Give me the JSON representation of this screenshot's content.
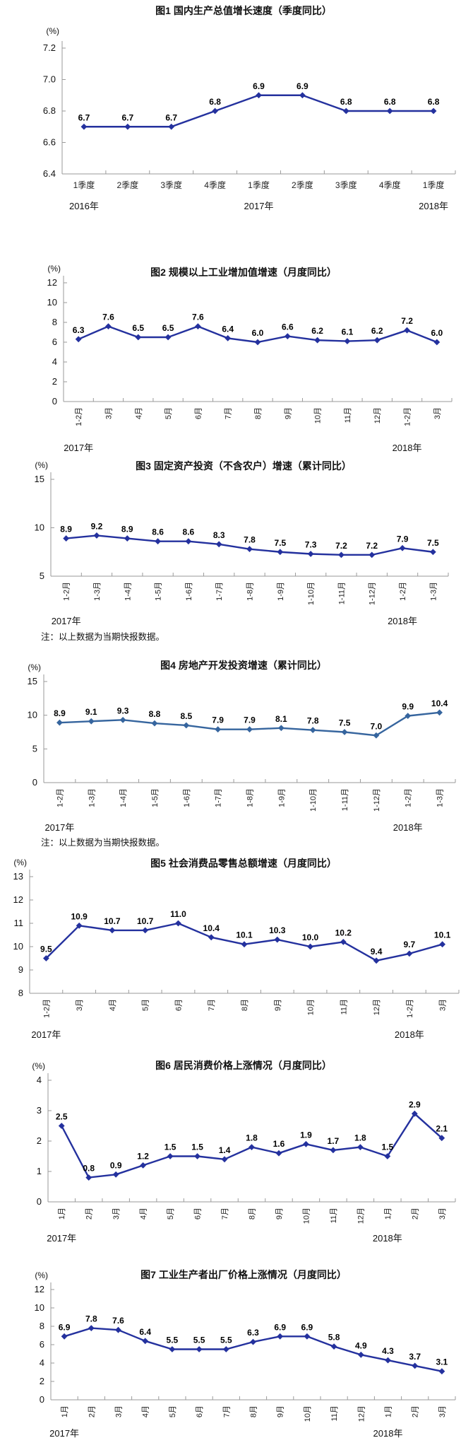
{
  "page": {
    "background": "#ffffff",
    "axis_color": "#9a9a9a",
    "text_color": "#000000"
  },
  "chart_data": [
    {
      "type": "line",
      "title": "图1  国内生产总值增长速度（季度同比）",
      "unit": "(%)",
      "categories": [
        "1季度",
        "2季度",
        "3季度",
        "4季度",
        "1季度",
        "2季度",
        "3季度",
        "4季度",
        "1季度"
      ],
      "values": [
        6.7,
        6.7,
        6.7,
        6.8,
        6.9,
        6.9,
        6.8,
        6.8,
        6.8
      ],
      "y_ticks": [
        "7.2",
        "7.0",
        "6.8",
        "6.6",
        "6.4"
      ],
      "ylim": [
        6.4,
        7.2
      ],
      "grid": false,
      "legend": "none",
      "year_labels": [
        {
          "text": "2016年",
          "index": 0
        },
        {
          "text": "2017年",
          "index": 4
        },
        {
          "text": "2018年",
          "index": 8
        }
      ],
      "rotated_x_labels": false,
      "line_color": "#24319e",
      "note": ""
    },
    {
      "type": "line",
      "title": "图2  规模以上工业增加值增速（月度同比）",
      "unit": "(%)",
      "categories": [
        "1-2月",
        "3月",
        "4月",
        "5月",
        "6月",
        "7月",
        "8月",
        "9月",
        "10月",
        "11月",
        "12月",
        "1-2月",
        "3月"
      ],
      "values": [
        6.3,
        7.6,
        6.5,
        6.5,
        7.6,
        6.4,
        6.0,
        6.6,
        6.2,
        6.1,
        6.2,
        7.2,
        6.0
      ],
      "y_ticks": [
        "12",
        "10",
        "8",
        "6",
        "4",
        "2",
        "0"
      ],
      "ylim": [
        0,
        12
      ],
      "grid": false,
      "legend": "none",
      "year_labels": [
        {
          "text": "2017年",
          "index": 0
        },
        {
          "text": "2018年",
          "index": 11
        }
      ],
      "rotated_x_labels": true,
      "line_color": "#24319e",
      "note": ""
    },
    {
      "type": "line",
      "title": "图3  固定资产投资（不含农户）增速（累计同比）",
      "unit": "(%)",
      "categories": [
        "1-2月",
        "1-3月",
        "1-4月",
        "1-5月",
        "1-6月",
        "1-7月",
        "1-8月",
        "1-9月",
        "1-10月",
        "1-11月",
        "1-12月",
        "1-2月",
        "1-3月"
      ],
      "values": [
        8.9,
        9.2,
        8.9,
        8.6,
        8.6,
        8.3,
        7.8,
        7.5,
        7.3,
        7.2,
        7.2,
        7.9,
        7.5
      ],
      "y_ticks": [
        "15",
        "10",
        "5"
      ],
      "ylim": [
        5,
        15
      ],
      "grid": false,
      "legend": "none",
      "year_labels": [
        {
          "text": "2017年",
          "index": 0
        },
        {
          "text": "2018年",
          "index": 11
        }
      ],
      "rotated_x_labels": true,
      "line_color": "#24319e",
      "note": "注：以上数据为当期快报数据。"
    },
    {
      "type": "line",
      "title": "图4  房地产开发投资增速（累计同比）",
      "unit": "(%)",
      "categories": [
        "1-2月",
        "1-3月",
        "1-4月",
        "1-5月",
        "1-6月",
        "1-7月",
        "1-8月",
        "1-9月",
        "1-10月",
        "1-11月",
        "1-12月",
        "1-2月",
        "1-3月"
      ],
      "values": [
        8.9,
        9.1,
        9.3,
        8.8,
        8.5,
        7.9,
        7.9,
        8.1,
        7.8,
        7.5,
        7.0,
        9.9,
        10.4
      ],
      "y_ticks": [
        "15",
        "10",
        "5",
        "0"
      ],
      "ylim": [
        0,
        15
      ],
      "grid": false,
      "legend": "none",
      "year_labels": [
        {
          "text": "2017年",
          "index": 0
        },
        {
          "text": "2018年",
          "index": 11
        }
      ],
      "rotated_x_labels": true,
      "line_color": "#36659e",
      "note": "注：以上数据为当期快报数据。"
    },
    {
      "type": "line",
      "title": "图5 社会消费品零售总额增速（月度同比）",
      "unit": "(%)",
      "categories": [
        "1-2月",
        "3月",
        "4月",
        "5月",
        "6月",
        "7月",
        "8月",
        "9月",
        "10月",
        "11月",
        "12月",
        "1-2月",
        "3月"
      ],
      "values": [
        9.5,
        10.9,
        10.7,
        10.7,
        11.0,
        10.4,
        10.1,
        10.3,
        10.0,
        10.2,
        9.4,
        9.7,
        10.1
      ],
      "y_ticks": [
        "13",
        "12",
        "11",
        "10",
        "9",
        "8"
      ],
      "ylim": [
        8,
        13
      ],
      "grid": false,
      "legend": "none",
      "year_labels": [
        {
          "text": "2017年",
          "index": 0
        },
        {
          "text": "2018年",
          "index": 11
        }
      ],
      "rotated_x_labels": true,
      "line_color": "#24319e",
      "note": ""
    },
    {
      "type": "line",
      "title": "图6  居民消费价格上涨情况（月度同比）",
      "unit": "(%)",
      "categories": [
        "1月",
        "2月",
        "3月",
        "4月",
        "5月",
        "6月",
        "7月",
        "8月",
        "9月",
        "10月",
        "11月",
        "12月",
        "1月",
        "2月",
        "3月"
      ],
      "values": [
        2.5,
        0.8,
        0.9,
        1.2,
        1.5,
        1.5,
        1.4,
        1.8,
        1.6,
        1.9,
        1.7,
        1.8,
        1.5,
        2.9,
        2.1
      ],
      "y_ticks": [
        "4",
        "3",
        "2",
        "1",
        "0"
      ],
      "ylim": [
        0,
        4
      ],
      "grid": false,
      "legend": "none",
      "year_labels": [
        {
          "text": "2017年",
          "index": 0
        },
        {
          "text": "2018年",
          "index": 12
        }
      ],
      "rotated_x_labels": true,
      "line_color": "#24319e",
      "note": ""
    },
    {
      "type": "line",
      "title": "图7  工业生产者出厂价格上涨情况（月度同比）",
      "unit": "(%)",
      "categories": [
        "1月",
        "2月",
        "3月",
        "4月",
        "5月",
        "6月",
        "7月",
        "8月",
        "9月",
        "10月",
        "11月",
        "12月",
        "1月",
        "2月",
        "3月"
      ],
      "values": [
        6.9,
        7.8,
        7.6,
        6.4,
        5.5,
        5.5,
        5.5,
        6.3,
        6.9,
        6.9,
        5.8,
        4.9,
        4.3,
        3.7,
        3.1
      ],
      "y_ticks": [
        "12",
        "10",
        "8",
        "6",
        "4",
        "2",
        "0"
      ],
      "ylim": [
        0,
        12
      ],
      "grid": false,
      "legend": "none",
      "year_labels": [
        {
          "text": "2017年",
          "index": 0
        },
        {
          "text": "2018年",
          "index": 12
        }
      ],
      "rotated_x_labels": true,
      "line_color": "#24319e",
      "note": ""
    }
  ]
}
